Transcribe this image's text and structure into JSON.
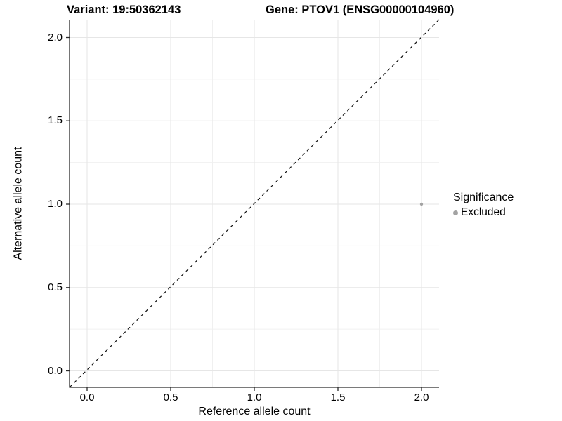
{
  "titles": {
    "variant": "Variant: 19:50362143",
    "gene": "Gene: PTOV1 (ENSG00000104960)"
  },
  "chart_data": {
    "type": "scatter",
    "title_left": "Variant: 19:50362143",
    "title_right": "Gene: PTOV1 (ENSG00000104960)",
    "xlabel": "Reference allele count",
    "ylabel": "Alternative allele count",
    "xlim": [
      -0.105,
      2.105
    ],
    "ylim": [
      -0.1,
      2.105
    ],
    "x_ticks": [
      0.0,
      0.5,
      1.0,
      1.5,
      2.0
    ],
    "y_ticks": [
      0.0,
      0.5,
      1.0,
      1.5,
      2.0
    ],
    "x_tick_labels": [
      "0.0",
      "0.5",
      "1.0",
      "1.5",
      "2.0"
    ],
    "y_tick_labels": [
      "0.0",
      "0.5",
      "1.0",
      "1.5",
      "2.0"
    ],
    "grid": "major and minor gridlines, light gray on white panel",
    "reference_line": {
      "type": "identity y=x",
      "style": "dashed",
      "color": "#000000"
    },
    "series": [
      {
        "name": "Excluded",
        "color": "#a3a3a3",
        "points": [
          {
            "x": 2.0,
            "y": 1.0
          }
        ]
      }
    ],
    "legend": {
      "title": "Significance",
      "position": "right",
      "entries": [
        {
          "label": "Excluded",
          "color": "#a3a3a3"
        }
      ]
    }
  }
}
